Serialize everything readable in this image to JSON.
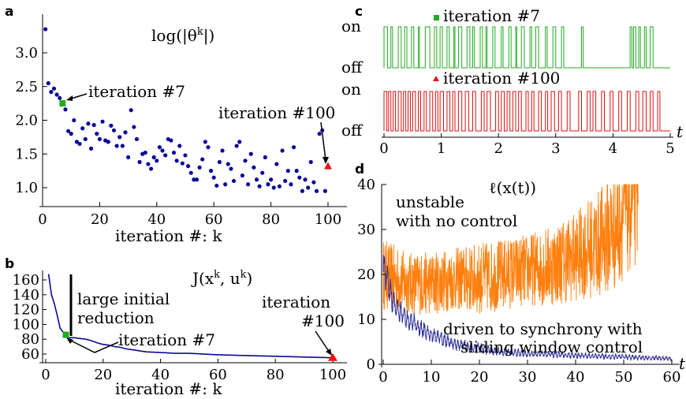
{
  "chart_data": [
    {
      "panel_label": "a",
      "type": "scatter",
      "title": "log(|θ^k|)",
      "xlabel": "iteration #: k",
      "ylabel": "",
      "xlim": [
        0,
        102
      ],
      "ylim": [
        0.75,
        3.45
      ],
      "xticks": [
        "0",
        "20",
        "40",
        "60",
        "80",
        "100"
      ],
      "yticks": [
        "1.0",
        "1.5",
        "2.0",
        "2.5",
        "3.0"
      ],
      "series": [
        {
          "color": "#0a0a96",
          "x": [
            1,
            2,
            3,
            4,
            5,
            6,
            7,
            8,
            9,
            10,
            11,
            12,
            13,
            14,
            15,
            16,
            17,
            18,
            19,
            20,
            21,
            22,
            23,
            24,
            25,
            26,
            27,
            28,
            29,
            30,
            31,
            32,
            33,
            34,
            35,
            36,
            37,
            38,
            39,
            40,
            41,
            42,
            43,
            44,
            45,
            46,
            47,
            48,
            49,
            50,
            51,
            52,
            53,
            54,
            55,
            56,
            57,
            58,
            59,
            60,
            61,
            62,
            63,
            64,
            65,
            66,
            67,
            68,
            69,
            70,
            71,
            72,
            73,
            74,
            75,
            76,
            77,
            78,
            79,
            80,
            81,
            82,
            83,
            84,
            85,
            86,
            87,
            88,
            89,
            90,
            91,
            92,
            93,
            94,
            95,
            96,
            97,
            98,
            99
          ],
          "y": [
            3.35,
            2.55,
            2.42,
            2.47,
            2.38,
            2.33,
            2.25,
            2.16,
            1.84,
            1.8,
            2.0,
            1.68,
            1.65,
            1.88,
            1.72,
            1.95,
            1.58,
            1.93,
            1.8,
            1.72,
            1.98,
            1.7,
            1.68,
            1.92,
            1.85,
            1.62,
            1.75,
            1.62,
            1.82,
            1.45,
            2.15,
            1.9,
            1.72,
            1.38,
            1.5,
            1.52,
            1.35,
            1.28,
            1.45,
            1.4,
            1.6,
            1.55,
            1.48,
            1.72,
            1.7,
            1.52,
            1.4,
            1.62,
            1.36,
            1.48,
            1.32,
            1.22,
            1.12,
            1.12,
            1.3,
            1.42,
            1.68,
            1.6,
            1.25,
            1.15,
            1.03,
            1.38,
            1.55,
            1.05,
            1.35,
            1.28,
            1.1,
            1.62,
            1.68,
            1.18,
            1.4,
            1.05,
            1.5,
            1.3,
            1.12,
            1.02,
            1.22,
            1.45,
            1.05,
            1.12,
            1.0,
            1.35,
            1.02,
            1.55,
            1.1,
            1.25,
            1.05,
            1.6,
            1.25,
            1.15,
            0.95,
            1.12,
            1.0,
            1.38,
            1.08,
            0.95,
            1.8,
            1.85,
            0.95
          ]
        }
      ],
      "highlights": [
        {
          "label": "iteration #7",
          "x": 7,
          "y": 2.25,
          "color": "#22aa22",
          "marker": "square"
        },
        {
          "label": "iteration #100",
          "x": 100,
          "y": 1.32,
          "color": "#ee1111",
          "marker": "triangle"
        }
      ]
    },
    {
      "panel_label": "b",
      "type": "line",
      "title": "J(x^k, u^k)",
      "xlabel": "iteration #: k",
      "ylabel": "",
      "xlim": [
        -2,
        102
      ],
      "ylim": [
        50,
        172
      ],
      "xticks": [
        "0",
        "20",
        "40",
        "60",
        "80",
        "100"
      ],
      "yticks": [
        "60",
        "80",
        "100",
        "120",
        "140",
        "160"
      ],
      "series": [
        {
          "color": "#0a0a96",
          "x": [
            1,
            2,
            3,
            4,
            5,
            6,
            7,
            8,
            10,
            12,
            14,
            16,
            18,
            20,
            22,
            24,
            26,
            28,
            30,
            35,
            40,
            45,
            50,
            60,
            70,
            80,
            90,
            100
          ],
          "y": [
            168,
            140,
            128,
            112,
            95,
            90,
            86,
            82,
            82,
            81,
            80,
            78,
            75,
            73,
            72,
            70,
            69,
            67,
            66,
            63,
            62,
            61,
            61,
            59,
            58,
            57,
            56,
            55
          ]
        }
      ],
      "annotations": [
        "large initial reduction",
        "iteration #7",
        "iteration #100"
      ],
      "highlights": [
        {
          "label": "iteration #7",
          "x": 7,
          "y": 86,
          "color": "#22aa22",
          "marker": "square"
        },
        {
          "label": "iteration #100",
          "x": 100,
          "y": 55,
          "color": "#ee1111",
          "marker": "triangle"
        }
      ]
    },
    {
      "panel_label": "c",
      "type": "line",
      "title": "",
      "xlabel": "t",
      "ylabel": "",
      "xlim": [
        0,
        5
      ],
      "xticks": [
        "0",
        "1",
        "2",
        "3",
        "4",
        "5"
      ],
      "yticks": [
        "on",
        "off"
      ],
      "series": [
        {
          "name": "iteration #7",
          "color": "#22aa22",
          "on_intervals": [
            [
              0.0,
              0.06
            ],
            [
              0.12,
              0.15
            ],
            [
              0.25,
              0.3
            ],
            [
              0.36,
              0.4
            ],
            [
              0.48,
              0.52
            ],
            [
              0.6,
              0.62
            ],
            [
              0.72,
              0.8
            ],
            [
              0.88,
              0.92
            ],
            [
              0.98,
              1.02
            ],
            [
              1.1,
              1.14
            ],
            [
              1.22,
              1.24
            ],
            [
              1.3,
              1.36
            ],
            [
              1.45,
              1.5
            ],
            [
              1.55,
              1.58
            ],
            [
              1.68,
              1.72
            ],
            [
              1.78,
              1.8
            ],
            [
              1.9,
              1.94
            ],
            [
              2.05,
              2.08
            ],
            [
              2.18,
              2.22
            ],
            [
              2.3,
              2.32
            ],
            [
              2.4,
              2.45
            ],
            [
              2.55,
              2.58
            ],
            [
              2.65,
              2.7
            ],
            [
              2.82,
              2.85
            ],
            [
              2.95,
              3.0
            ],
            [
              3.1,
              3.14
            ],
            [
              3.45,
              3.48
            ],
            [
              4.3,
              4.33
            ],
            [
              4.36,
              4.4
            ],
            [
              4.45,
              4.48
            ],
            [
              4.55,
              4.58
            ],
            [
              4.65,
              4.7
            ]
          ]
        },
        {
          "name": "iteration #100",
          "color": "#dd1111",
          "on_intervals": [
            [
              0.0,
              0.05
            ],
            [
              0.08,
              0.12
            ],
            [
              0.16,
              0.2
            ],
            [
              0.25,
              0.3
            ],
            [
              0.34,
              0.38
            ],
            [
              0.42,
              0.46
            ],
            [
              0.5,
              0.55
            ],
            [
              0.6,
              0.64
            ],
            [
              0.7,
              0.74
            ],
            [
              0.8,
              0.85
            ],
            [
              0.9,
              0.94
            ],
            [
              0.98,
              1.04
            ],
            [
              1.1,
              1.15
            ],
            [
              1.2,
              1.24
            ],
            [
              1.3,
              1.36
            ],
            [
              1.42,
              1.48
            ],
            [
              1.55,
              1.6
            ],
            [
              1.7,
              1.75
            ],
            [
              1.8,
              1.86
            ],
            [
              1.95,
              2.0
            ],
            [
              2.05,
              2.1
            ],
            [
              2.15,
              2.2
            ],
            [
              2.25,
              2.3
            ],
            [
              2.35,
              2.4
            ],
            [
              2.48,
              2.52
            ],
            [
              2.58,
              2.62
            ],
            [
              2.7,
              2.75
            ],
            [
              2.82,
              2.86
            ],
            [
              2.92,
              2.98
            ],
            [
              3.05,
              3.1
            ],
            [
              3.2,
              3.25
            ],
            [
              3.4,
              3.45
            ],
            [
              3.55,
              3.6
            ],
            [
              3.65,
              3.7
            ],
            [
              3.8,
              3.85
            ],
            [
              3.95,
              4.0
            ],
            [
              4.1,
              4.15
            ],
            [
              4.25,
              4.3
            ],
            [
              4.4,
              4.45
            ],
            [
              4.52,
              4.58
            ],
            [
              4.65,
              4.7
            ],
            [
              4.78,
              4.82
            ]
          ]
        }
      ]
    },
    {
      "panel_label": "d",
      "type": "line",
      "title": "ℓ(x(t))",
      "xlabel": "t",
      "ylabel": "",
      "xlim": [
        0,
        61
      ],
      "ylim": [
        0,
        40
      ],
      "xticks": [
        "0",
        "10",
        "20",
        "30",
        "40",
        "50",
        "60"
      ],
      "yticks": [
        "0",
        "10",
        "20",
        "30",
        "40"
      ],
      "series": [
        {
          "name": "unstable with no control",
          "color": "#ff7f0e",
          "t_end": 53,
          "envelope_x": [
            0,
            5,
            10,
            15,
            20,
            25,
            30,
            35,
            40,
            45,
            48,
            50,
            53
          ],
          "envelope_mean": [
            20,
            18,
            18,
            19,
            19,
            20,
            21,
            22,
            24,
            27,
            30,
            34,
            38
          ],
          "envelope_halfwidth": [
            8,
            7,
            7,
            7,
            8,
            8,
            8,
            9,
            10,
            12,
            14,
            15,
            16
          ]
        },
        {
          "name": "driven to synchrony with sliding window control",
          "color": "#2c2c96",
          "t_end": 60,
          "envelope_x": [
            0,
            1,
            2,
            3,
            5,
            8,
            10,
            15,
            20,
            25,
            30,
            40,
            50,
            60
          ],
          "envelope_mean": [
            22,
            18,
            14,
            12,
            10,
            8,
            6.5,
            4.5,
            3.5,
            2.8,
            2.4,
            2.0,
            1.6,
            1.3
          ],
          "envelope_halfwidth": [
            3,
            3,
            2.5,
            2.5,
            2,
            2,
            1.5,
            1.2,
            1.0,
            0.8,
            0.7,
            0.6,
            0.5,
            0.4
          ]
        }
      ]
    }
  ],
  "labels": {
    "a_title_pre": "log(|θ",
    "a_title_sup": "k",
    "a_title_post": "|)",
    "a_ann7": "iteration #7",
    "a_ann100": "iteration #100",
    "b_title_pre": "J(x",
    "b_title_sup1": "k",
    "b_title_mid": ", u",
    "b_title_sup2": "k",
    "b_title_post": ")",
    "b_ann_reduction_1": "large initial",
    "b_ann_reduction_2": "reduction",
    "b_ann7": "iteration #7",
    "b_ann100_1": "iteration",
    "b_ann100_2": "#100",
    "c_leg7": "iteration #7",
    "c_leg100": "iteration #100",
    "d_ann_unstable_1": "unstable",
    "d_ann_unstable_2": "with no control",
    "d_ann_sync_1": "driven to synchrony with",
    "d_ann_sync_2": "sliding window control"
  }
}
